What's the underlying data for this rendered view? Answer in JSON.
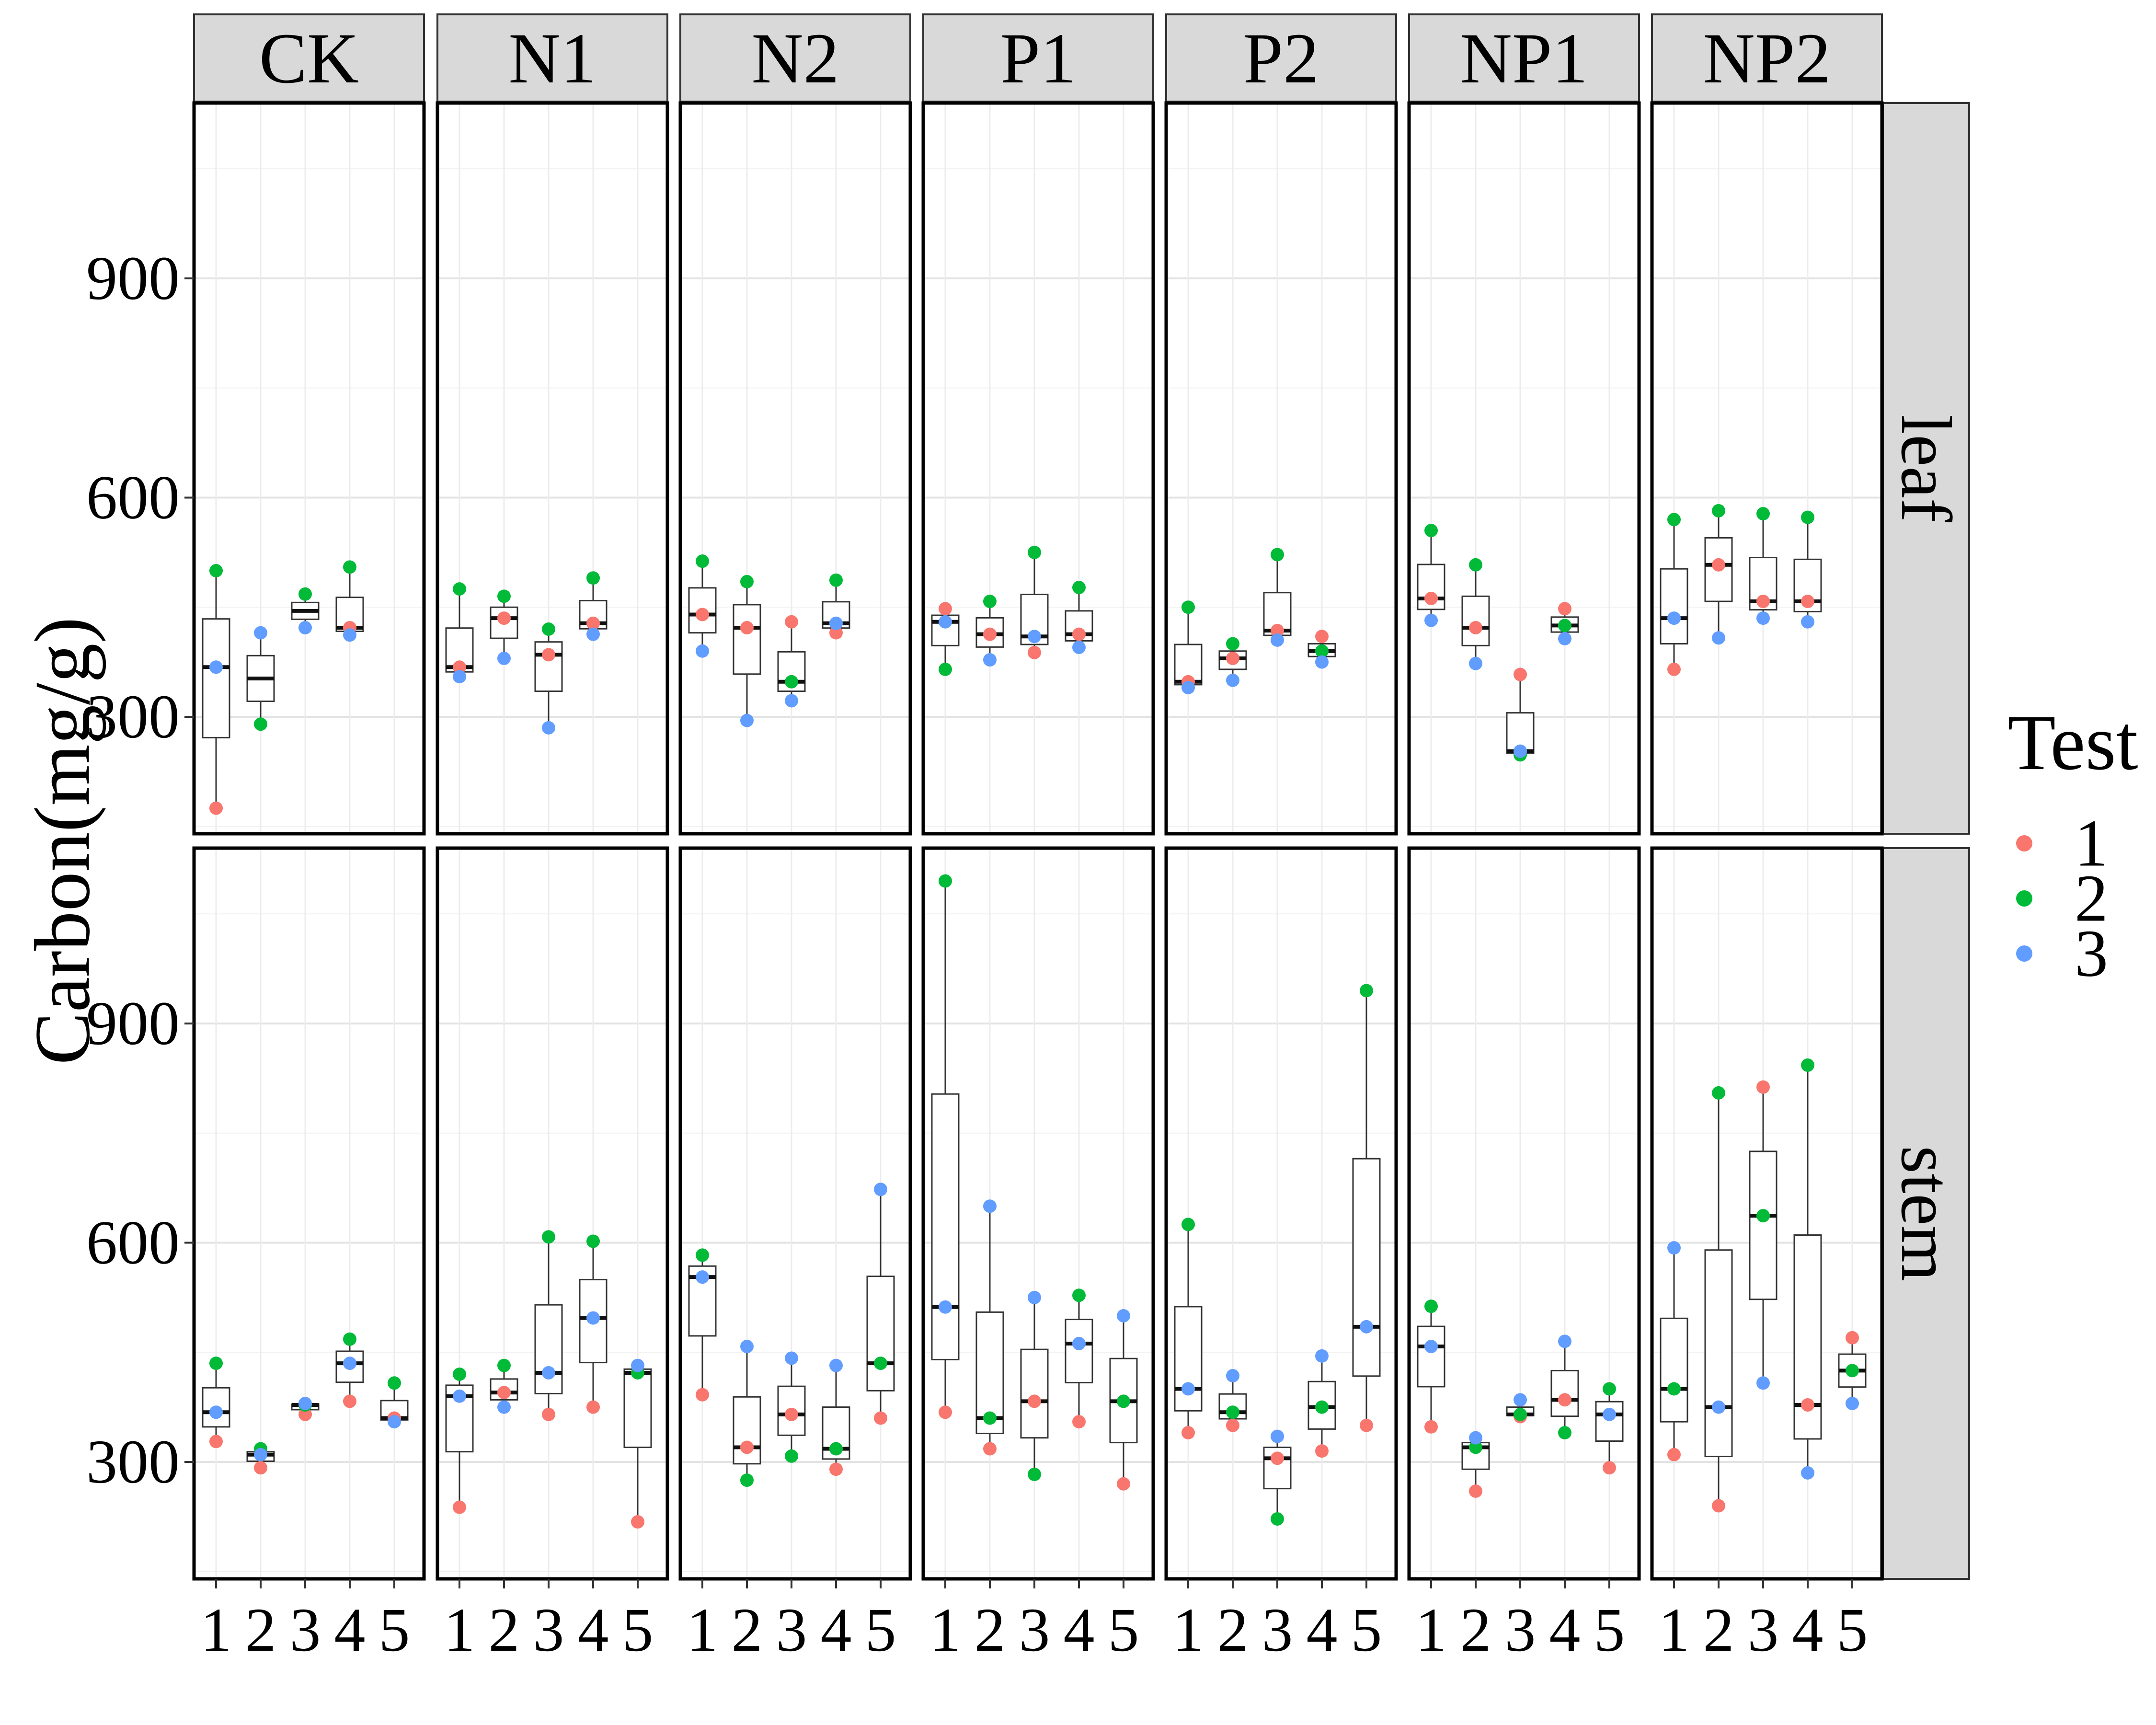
{
  "chart_data": {
    "type": "boxplot",
    "title": "",
    "xlabel": "",
    "ylabel": "Carbon(mg/g)",
    "ylim": [
      140,
      1140
    ],
    "yticks": [
      300,
      600,
      900
    ],
    "x_categories": [
      "1",
      "2",
      "3",
      "4",
      "5"
    ],
    "col_facets": [
      "CK",
      "N1",
      "N2",
      "P1",
      "P2",
      "NP1",
      "NP2"
    ],
    "row_facets": [
      "leaf",
      "stem"
    ],
    "legend": {
      "title": "Test",
      "position": "right",
      "items": [
        {
          "label": "1",
          "color": "#F8766D"
        },
        {
          "label": "2",
          "color": "#00BA38"
        },
        {
          "label": "3",
          "color": "#619CFF"
        }
      ]
    },
    "grid": true,
    "panels": {
      "leaf": {
        "CK": [
          [
            175,
            500,
            368
          ],
          [
            null,
            290,
            415
          ],
          [
            null,
            468,
            422
          ],
          [
            422,
            505,
            412
          ]
        ],
        "N1": [
          [
            368,
            475,
            355
          ],
          [
            435,
            465,
            380
          ],
          [
            385,
            420,
            285
          ],
          [
            428,
            490,
            413
          ]
        ],
        "N2": [
          [
            440,
            513,
            390
          ],
          [
            422,
            485,
            295
          ],
          [
            430,
            348,
            322
          ],
          [
            415,
            487,
            428
          ]
        ],
        "P1": [
          [
            448,
            365,
            430
          ],
          [
            413,
            458,
            378
          ],
          [
            388,
            525,
            410
          ],
          [
            413,
            477,
            395
          ]
        ],
        "P2": [
          [
            348,
            450,
            340
          ],
          [
            380,
            400,
            350
          ],
          [
            418,
            522,
            405
          ],
          [
            410,
            390,
            375
          ]
        ],
        "NP1": [
          [
            462,
            555,
            432
          ],
          [
            422,
            508,
            373
          ],
          [
            358,
            248,
            253
          ],
          [
            448,
            425,
            407
          ]
        ],
        "NP2": [
          [
            365,
            570,
            435
          ],
          [
            508,
            582,
            408
          ],
          [
            458,
            578,
            435
          ],
          [
            458,
            573,
            430
          ]
        ]
      },
      "stem": {
        "CK": [
          [
            328,
            435,
            368
          ],
          [
            292,
            318,
            310
          ],
          [
            365,
            378,
            380
          ],
          [
            383,
            468,
            435
          ],
          [
            360,
            408,
            355
          ]
        ],
        "N1": [
          [
            238,
            420,
            390
          ],
          [
            395,
            432,
            375
          ],
          [
            365,
            608,
            422
          ],
          [
            375,
            602,
            497
          ],
          [
            218,
            422,
            432
          ]
        ],
        "N2": [
          [
            392,
            583,
            553
          ],
          [
            320,
            275,
            458
          ],
          [
            365,
            308,
            442
          ],
          [
            290,
            318,
            432
          ],
          [
            360,
            435,
            673
          ]
        ],
        "P1": [
          [
            368,
            1095,
            512
          ],
          [
            318,
            360,
            650
          ],
          [
            383,
            283,
            525
          ],
          [
            355,
            528,
            462
          ],
          [
            270,
            383,
            500
          ]
        ],
        "P2": [
          [
            340,
            625,
            400
          ],
          [
            350,
            368,
            418
          ],
          [
            305,
            222,
            335
          ],
          [
            315,
            375,
            445
          ],
          [
            350,
            945,
            485
          ]
        ],
        "NP1": [
          [
            348,
            513,
            458
          ],
          [
            260,
            320,
            333
          ],
          [
            362,
            365,
            385
          ],
          [
            385,
            340,
            465
          ],
          [
            292,
            400,
            365
          ]
        ],
        "NP2": [
          [
            310,
            400,
            593
          ],
          [
            240,
            805,
            375
          ],
          [
            813,
            637,
            408
          ],
          [
            378,
            843,
            285
          ],
          [
            470,
            425,
            380
          ]
        ]
      }
    }
  }
}
